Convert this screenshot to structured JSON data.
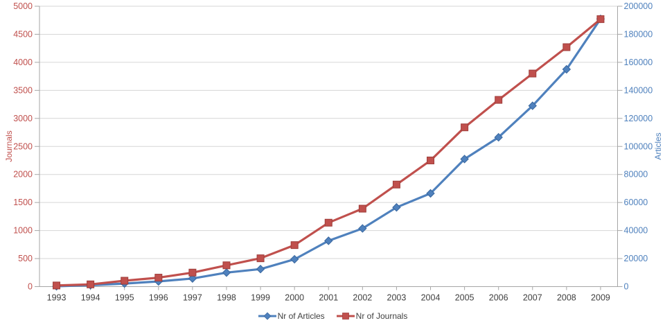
{
  "chart_data": {
    "type": "line",
    "title": "",
    "x_categories": [
      "1993",
      "1994",
      "1995",
      "1996",
      "1997",
      "1998",
      "1999",
      "2000",
      "2001",
      "2002",
      "2003",
      "2004",
      "2005",
      "2006",
      "2007",
      "2008",
      "2009"
    ],
    "series": [
      {
        "name": "Nr of Articles",
        "axis": "right",
        "color": "#4f81bd",
        "marker_stroke": "#39679e",
        "marker": "diamond",
        "values": [
          250,
          1000,
          2200,
          3700,
          5800,
          10000,
          12500,
          19500,
          32700,
          41500,
          56500,
          66500,
          91000,
          106500,
          129000,
          155000,
          191000
        ]
      },
      {
        "name": "Nr of Journals",
        "axis": "left",
        "color": "#c0504d",
        "marker_stroke": "#9e3d3a",
        "marker": "square",
        "values": [
          20,
          40,
          105,
          160,
          250,
          380,
          505,
          740,
          1140,
          1390,
          1820,
          2250,
          2840,
          3330,
          3800,
          4270,
          4770
        ]
      }
    ],
    "left_axis": {
      "label": "Journals",
      "min": 0,
      "max": 5000,
      "step": 500,
      "ticks": [
        "0",
        "500",
        "1000",
        "1500",
        "2000",
        "2500",
        "3000",
        "3500",
        "4000",
        "4500",
        "5000"
      ],
      "color": "#c0504d"
    },
    "right_axis": {
      "label": "Articles",
      "min": 0,
      "max": 200000,
      "step": 20000,
      "ticks": [
        "0",
        "20000",
        "40000",
        "60000",
        "80000",
        "100000",
        "120000",
        "140000",
        "160000",
        "180000",
        "200000"
      ],
      "color": "#4f81bd"
    },
    "legend": [
      "Nr of Articles",
      "Nr of Journals"
    ],
    "legend_position": "bottom",
    "grid": true,
    "colors": {
      "gridline": "#d6d6d6",
      "axis_line": "#a6a6a6",
      "x_tick_label": "#404040",
      "legend_text": "#404040",
      "background": "#ffffff"
    }
  }
}
